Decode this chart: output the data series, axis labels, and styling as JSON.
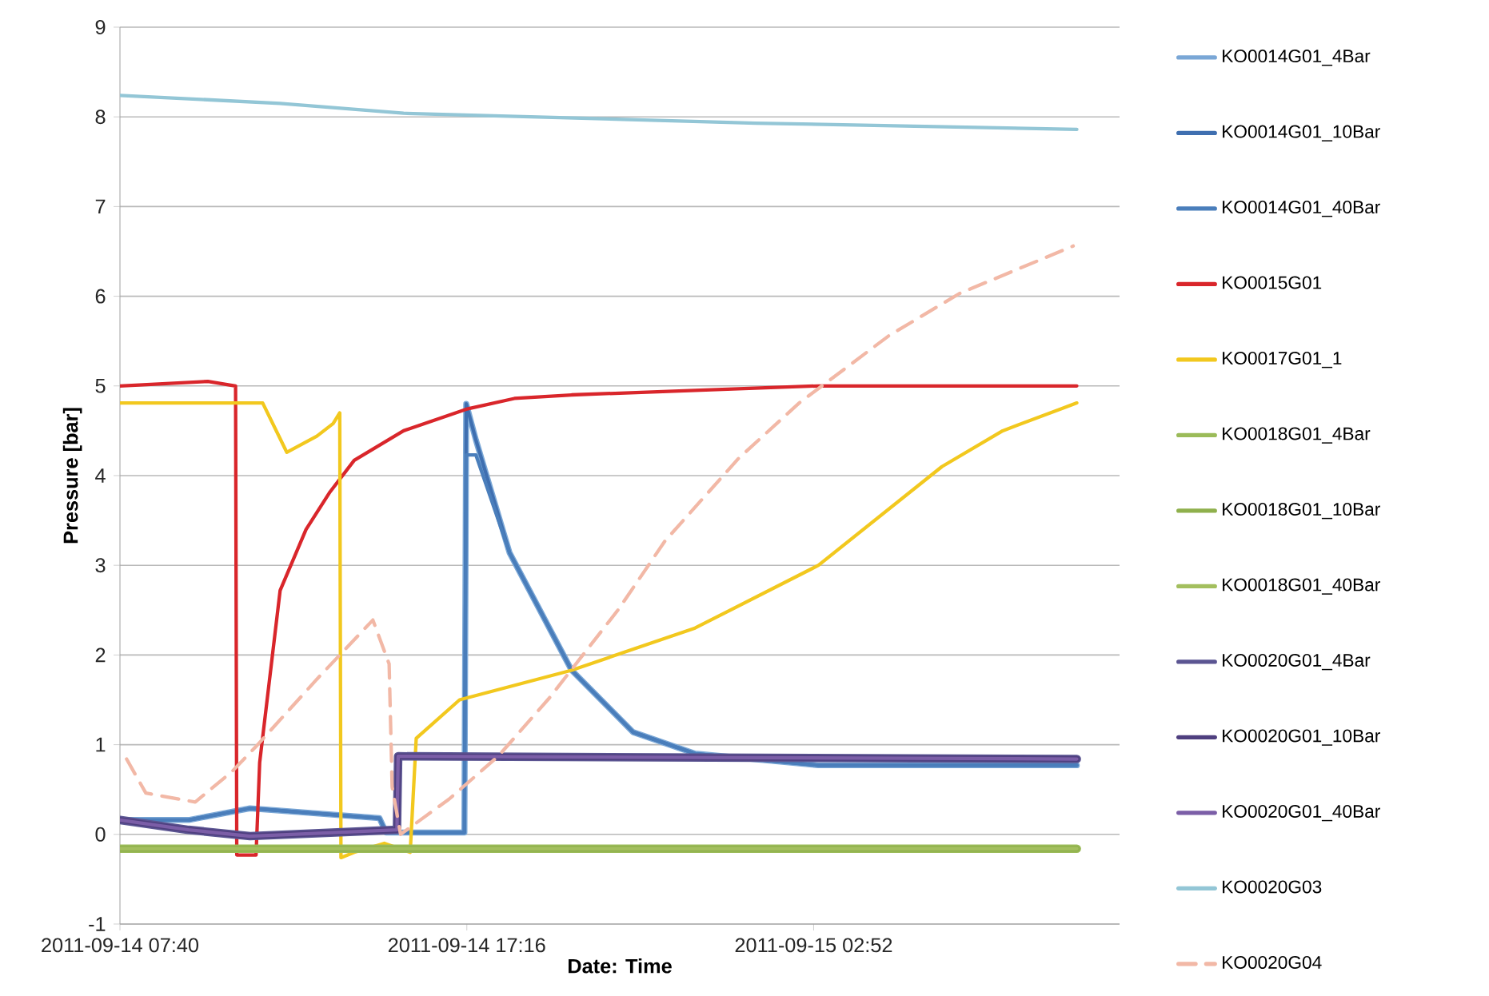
{
  "chart_data": {
    "type": "line",
    "xlabel": "Date: Time",
    "ylabel": "Pressure [bar]",
    "xlim": [
      "2011-09-14T07:40",
      "2011-09-15T11:20"
    ],
    "xticks": [
      {
        "value": "2011-09-14T07:40",
        "label": "2011-09-14 07:40"
      },
      {
        "value": "2011-09-14T17:16",
        "label": "2011-09-14 17:16"
      },
      {
        "value": "2011-09-15T02:52",
        "label": "2011-09-15 02:52"
      }
    ],
    "ylim": [
      -1,
      9
    ],
    "yticks": [
      -1,
      0,
      1,
      2,
      3,
      4,
      5,
      6,
      7,
      8,
      9
    ],
    "grid": "y",
    "legend": "right",
    "marker": "none",
    "series": [
      {
        "name": "KO0014G01_4Bar",
        "color": "#7aa7d6",
        "x": [
          "2011-09-14T07:40",
          "2011-09-14T09:34",
          "2011-09-14T11:16",
          "2011-09-14T14:51",
          "2011-09-14T15:02",
          "2011-09-14T17:12",
          "2011-09-14T17:15",
          "2011-09-14T17:31",
          "2011-09-14T18:27",
          "2011-09-14T20:10",
          "2011-09-14T21:52",
          "2011-09-14T23:35",
          "2011-09-15T03:00",
          "2011-09-15T10:09"
        ],
        "values": [
          0.16,
          0.16,
          0.29,
          0.18,
          0.02,
          0.02,
          4.8,
          4.4,
          3.14,
          1.83,
          1.14,
          0.9,
          0.77,
          0.77
        ]
      },
      {
        "name": "KO0014G01_10Bar",
        "color": "#3f6fb0",
        "x": [
          "2011-09-14T07:40",
          "2011-09-14T09:34",
          "2011-09-14T11:16",
          "2011-09-14T14:51",
          "2011-09-14T15:02",
          "2011-09-14T17:12",
          "2011-09-14T17:15",
          "2011-09-14T17:31",
          "2011-09-14T18:27",
          "2011-09-14T20:10",
          "2011-09-14T21:52",
          "2011-09-14T23:35",
          "2011-09-15T03:00",
          "2011-09-15T10:09"
        ],
        "values": [
          0.16,
          0.16,
          0.29,
          0.18,
          0.02,
          0.02,
          4.8,
          4.4,
          3.14,
          1.83,
          1.14,
          0.9,
          0.77,
          0.77
        ]
      },
      {
        "name": "KO0014G01_40Bar",
        "color": "#4a7ebb",
        "x": [
          "2011-09-14T07:40",
          "2011-09-14T09:34",
          "2011-09-14T11:16",
          "2011-09-14T14:51",
          "2011-09-14T15:02",
          "2011-09-14T17:12",
          "2011-09-14T17:15",
          "2011-09-14T17:31",
          "2011-09-14T18:27",
          "2011-09-14T20:10",
          "2011-09-14T21:52",
          "2011-09-14T23:35",
          "2011-09-15T03:00",
          "2011-09-15T10:09"
        ],
        "values": [
          0.16,
          0.16,
          0.29,
          0.18,
          0.02,
          0.02,
          4.23,
          4.23,
          3.14,
          1.83,
          1.14,
          0.9,
          0.77,
          0.77
        ]
      },
      {
        "name": "KO0015G01",
        "color": "#d9262b",
        "x": [
          "2011-09-14T07:40",
          "2011-09-14T10:06",
          "2011-09-14T10:52",
          "2011-09-14T10:54",
          "2011-09-14T11:26",
          "2011-09-14T11:32",
          "2011-09-14T12:06",
          "2011-09-14T12:49",
          "2011-09-14T13:29",
          "2011-09-14T14:09",
          "2011-09-14T15:31",
          "2011-09-14T17:15",
          "2011-09-14T18:35",
          "2011-09-14T20:10",
          "2011-09-14T23:35",
          "2011-09-15T03:00",
          "2011-09-15T10:09"
        ],
        "values": [
          5.0,
          5.05,
          5.0,
          -0.23,
          -0.23,
          0.8,
          2.72,
          3.4,
          3.82,
          4.17,
          4.5,
          4.74,
          4.86,
          4.9,
          4.95,
          5.0,
          5.0
        ]
      },
      {
        "name": "KO0017G01_1",
        "color": "#f2c81e",
        "x": [
          "2011-09-14T07:40",
          "2011-09-14T11:37",
          "2011-09-14T12:17",
          "2011-09-14T13:07",
          "2011-09-14T13:34",
          "2011-09-14T13:45",
          "2011-09-14T13:47",
          "2011-09-14T14:09",
          "2011-09-14T14:59",
          "2011-09-14T15:42",
          "2011-09-14T15:52",
          "2011-09-14T17:04",
          "2011-09-14T20:10",
          "2011-09-14T23:35",
          "2011-09-15T03:00",
          "2011-09-15T06:25",
          "2011-09-15T08:06",
          "2011-09-15T10:09"
        ],
        "values": [
          4.81,
          4.81,
          4.26,
          4.44,
          4.58,
          4.7,
          -0.26,
          -0.2,
          -0.1,
          -0.2,
          1.07,
          1.5,
          1.83,
          2.3,
          3.0,
          4.1,
          4.5,
          4.81
        ]
      },
      {
        "name": "KO0018G01_4Bar",
        "color": "#9bbb59",
        "x": [
          "2011-09-14T07:40",
          "2011-09-14T20:00",
          "2011-09-15T10:09"
        ],
        "values": [
          -0.16,
          -0.16,
          -0.16
        ]
      },
      {
        "name": "KO0018G01_10Bar",
        "color": "#8fb04c",
        "x": [
          "2011-09-14T07:40",
          "2011-09-14T20:00",
          "2011-09-15T10:09"
        ],
        "values": [
          -0.16,
          -0.16,
          -0.16
        ]
      },
      {
        "name": "KO0018G01_40Bar",
        "color": "#a3bf5e",
        "x": [
          "2011-09-14T07:40",
          "2011-09-14T20:00",
          "2011-09-15T10:09"
        ],
        "values": [
          -0.16,
          -0.16,
          -0.16
        ]
      },
      {
        "name": "KO0020G01_4Bar",
        "color": "#5b5592",
        "x": [
          "2011-09-14T07:40",
          "2011-09-14T09:34",
          "2011-09-14T11:16",
          "2011-09-14T15:20",
          "2011-09-14T15:22",
          "2011-09-15T10:09"
        ],
        "values": [
          0.16,
          0.05,
          -0.02,
          0.05,
          0.87,
          0.84
        ]
      },
      {
        "name": "KO0020G01_10Bar",
        "color": "#4f3f7f",
        "x": [
          "2011-09-14T07:40",
          "2011-09-14T09:34",
          "2011-09-14T11:16",
          "2011-09-14T15:20",
          "2011-09-14T15:22",
          "2011-09-15T10:09"
        ],
        "values": [
          0.16,
          0.05,
          -0.02,
          0.05,
          0.87,
          0.84
        ]
      },
      {
        "name": "KO0020G01_40Bar",
        "color": "#7b5ea7",
        "x": [
          "2011-09-14T07:40",
          "2011-09-14T09:34",
          "2011-09-14T11:16",
          "2011-09-14T15:20",
          "2011-09-14T15:22",
          "2011-09-15T10:09"
        ],
        "values": [
          0.16,
          0.05,
          -0.02,
          0.05,
          0.87,
          0.84
        ]
      },
      {
        "name": "KO0020G03",
        "color": "#93c6d6",
        "x": [
          "2011-09-14T07:40",
          "2011-09-14T12:06",
          "2011-09-14T15:31",
          "2011-09-15T01:16",
          "2011-09-15T10:09"
        ],
        "values": [
          8.24,
          8.15,
          8.04,
          7.93,
          7.86
        ]
      },
      {
        "name": "KO0020G04",
        "color": "#f2b8a6",
        "line_style": "dashed",
        "x": [
          "2011-09-14T07:51",
          "2011-09-14T08:23",
          "2011-09-14T09:45",
          "2011-09-14T10:46",
          "2011-09-14T11:26",
          "2011-09-14T13:07",
          "2011-09-14T14:40",
          "2011-09-14T15:07",
          "2011-09-14T15:12",
          "2011-09-14T15:26",
          "2011-09-14T16:46",
          "2011-09-14T18:08",
          "2011-09-14T19:33",
          "2011-09-14T21:28",
          "2011-09-14T22:45",
          "2011-09-15T00:47",
          "2011-09-15T02:28",
          "2011-09-15T04:57",
          "2011-09-15T06:54",
          "2011-09-15T10:03"
        ],
        "values": [
          0.84,
          0.46,
          0.36,
          0.7,
          0.98,
          1.73,
          2.39,
          1.9,
          0.53,
          0.0,
          0.39,
          0.87,
          1.52,
          2.51,
          3.27,
          4.19,
          4.81,
          5.56,
          6.03,
          6.56
        ]
      }
    ]
  }
}
